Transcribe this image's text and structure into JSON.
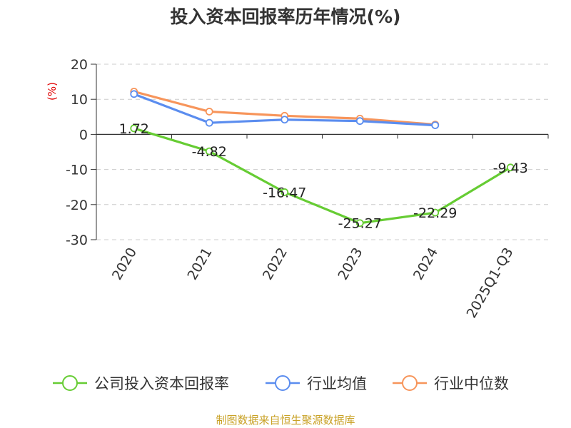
{
  "chart_data": {
    "type": "line",
    "title": "投入资本回报率历年情况(%)",
    "ylabel": "(%)",
    "xlabel": "",
    "ylim": [
      -30,
      20
    ],
    "yticks": [
      20,
      10,
      0,
      -10,
      -20,
      -30
    ],
    "grid": true,
    "categories": [
      "2020",
      "2021",
      "2022",
      "2023",
      "2024",
      "2025Q1-Q3"
    ],
    "series": [
      {
        "name": "公司投入资本回报率",
        "color": "#66cc33",
        "values": [
          1.72,
          -4.82,
          -16.47,
          -25.27,
          -22.29,
          -9.43
        ],
        "labels": [
          "1.72",
          "-4.82",
          "-16.47",
          "-25.27",
          "-22.29",
          "-9.43"
        ]
      },
      {
        "name": "行业均值",
        "color": "#5b8def",
        "values": [
          11.5,
          3.3,
          4.2,
          3.8,
          2.6,
          null
        ]
      },
      {
        "name": "行业中位数",
        "color": "#f7955b",
        "values": [
          12.2,
          6.5,
          5.3,
          4.5,
          2.8,
          null
        ]
      }
    ],
    "legend_position": "bottom"
  },
  "source": {
    "text": "制图数据来自恒生聚源数据库",
    "color": "#c9a227"
  }
}
